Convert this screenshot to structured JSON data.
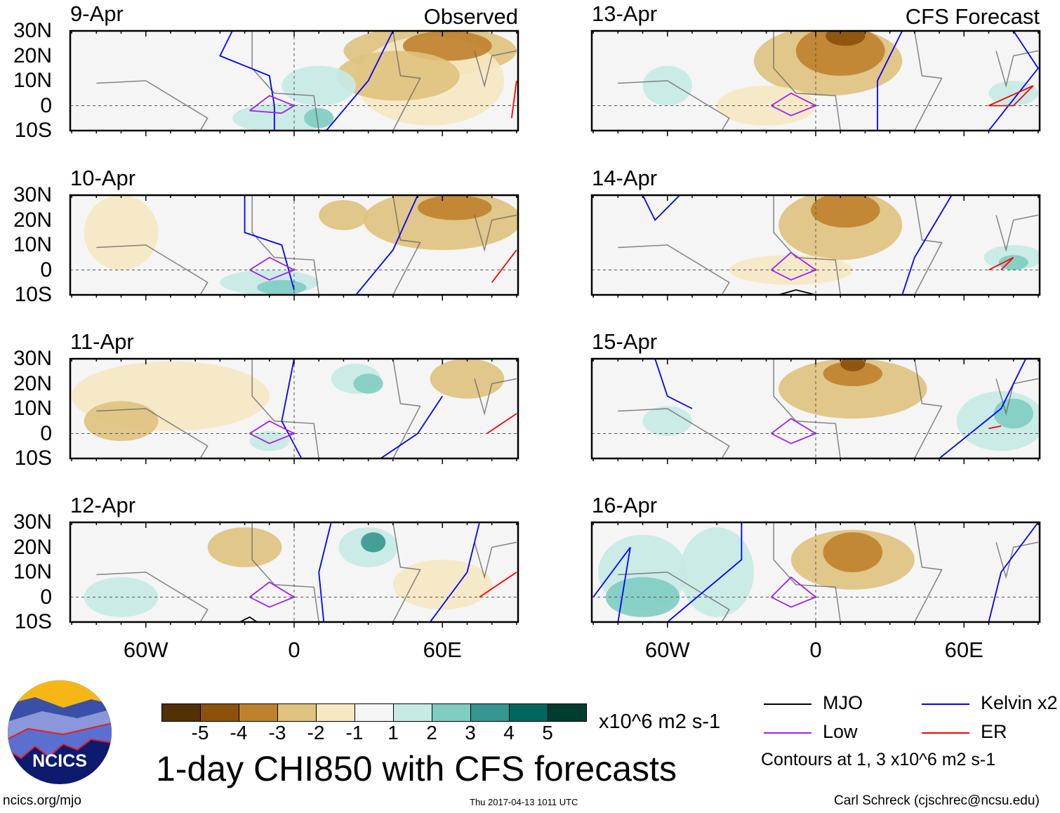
{
  "title": "1-day CHI850 with CFS forecasts",
  "panel_kinds": {
    "observed": "Observed",
    "forecast": "CFS Forecast"
  },
  "panels": [
    {
      "date": "9-Apr",
      "column": "observed"
    },
    {
      "date": "10-Apr",
      "column": "observed"
    },
    {
      "date": "11-Apr",
      "column": "observed"
    },
    {
      "date": "12-Apr",
      "column": "observed"
    },
    {
      "date": "13-Apr",
      "column": "forecast"
    },
    {
      "date": "14-Apr",
      "column": "forecast"
    },
    {
      "date": "15-Apr",
      "column": "forecast"
    },
    {
      "date": "16-Apr",
      "column": "forecast"
    }
  ],
  "lat_ticks": [
    "30N",
    "20N",
    "10N",
    "0",
    "10S"
  ],
  "lon_ticks": [
    "60W",
    "0",
    "60E"
  ],
  "colorbar": {
    "colors": [
      "#543005",
      "#8c510a",
      "#bf812d",
      "#dfc27d",
      "#f6e8c3",
      "#f5f5f5",
      "#c7eae5",
      "#80cdc1",
      "#35978f",
      "#01665e",
      "#003c30"
    ],
    "labels": [
      "-5",
      "-4",
      "-3",
      "-2",
      "-1",
      "1",
      "2",
      "3",
      "4",
      "5"
    ],
    "units": "x10^6 m2 s-1"
  },
  "legend": {
    "items": [
      {
        "label": "MJO",
        "color": "#000000"
      },
      {
        "label": "Kelvin x2",
        "color": "#0000ff"
      },
      {
        "label": "Low",
        "color": "#a020f0"
      },
      {
        "label": "ER",
        "color": "#ff0000"
      }
    ],
    "note": "Contours at 1, 3 x10^6 m2 s-1"
  },
  "logo": {
    "text": "NCICS"
  },
  "footer": {
    "left": "ncics.org/mjo",
    "center": "Thu 2017-04-13 1011 UTC",
    "right": "Carl Schreck (cjschrec@ncsu.edu)"
  }
}
